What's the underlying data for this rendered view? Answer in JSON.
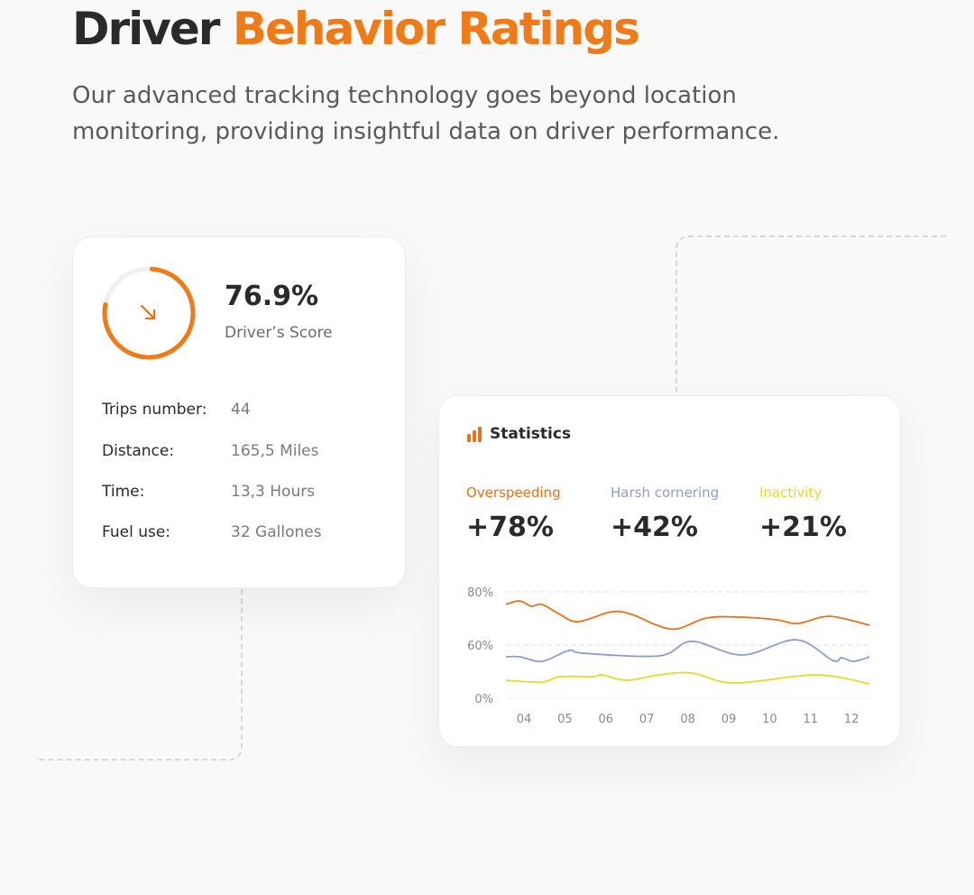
{
  "header": {
    "title_part1": "Driver",
    "title_part2": "Behavior Ratings",
    "subtitle": "Our advanced tracking technology goes beyond location monitoring, providing insightful data on driver performance."
  },
  "score_card": {
    "score": "76.9%",
    "score_fraction": 0.769,
    "score_label": "Driver’s Score",
    "trend_icon": "arrow-down-right-icon",
    "rows": [
      {
        "label": "Trips number:",
        "value": "44"
      },
      {
        "label": "Distance:",
        "value": "165,5 Miles"
      },
      {
        "label": "Time:",
        "value": "13,3 Hours"
      },
      {
        "label": "Fuel use:",
        "value": "32 Gallones"
      }
    ]
  },
  "stats_card": {
    "title": "Statistics",
    "icon": "bar-chart-icon",
    "metrics": [
      {
        "label": "Overspeeding",
        "value": "+78%",
        "color": "#e8711a"
      },
      {
        "label": "Harsh cornering",
        "value": "+42%",
        "color": "#8f9bd0"
      },
      {
        "label": "Inactivity",
        "value": "+21%",
        "color": "#e6d92a"
      }
    ]
  },
  "chart_data": {
    "type": "line",
    "x_ticks": [
      "04",
      "05",
      "06",
      "07",
      "08",
      "09",
      "10",
      "11",
      "12"
    ],
    "y_ticks": [
      "0%",
      "60%",
      "80%"
    ],
    "grid": true,
    "series": [
      {
        "color": "#e8711a",
        "points": [
          [
            3.56,
            75.3
          ],
          [
            3.89,
            76.6
          ],
          [
            4.18,
            74.6
          ],
          [
            4.44,
            75.3
          ],
          [
            4.88,
            71.5
          ],
          [
            5.32,
            68.8
          ],
          [
            6.14,
            72.5
          ],
          [
            6.64,
            71.5
          ],
          [
            7.24,
            67.5
          ],
          [
            7.74,
            66.1
          ],
          [
            8.47,
            70.2
          ],
          [
            9.29,
            70.5
          ],
          [
            10.17,
            69.5
          ],
          [
            10.67,
            68.1
          ],
          [
            11.27,
            70.5
          ],
          [
            11.64,
            70.5
          ],
          [
            12.44,
            67.5
          ]
        ]
      },
      {
        "color": "#8f9bd0",
        "points": [
          [
            3.56,
            46.8
          ],
          [
            3.9,
            46.8
          ],
          [
            4.44,
            41.7
          ],
          [
            5.1,
            53.9
          ],
          [
            5.45,
            50.8
          ],
          [
            7.3,
            47.8
          ],
          [
            8.1,
            61.4
          ],
          [
            9.33,
            48.8
          ],
          [
            10.65,
            62
          ],
          [
            11.54,
            42.7
          ],
          [
            11.76,
            45.8
          ],
          [
            12.05,
            41.7
          ],
          [
            12.44,
            46.8
          ]
        ]
      },
      {
        "color": "#e6d92a",
        "points": [
          [
            3.56,
            20.3
          ],
          [
            4.44,
            18.3
          ],
          [
            4.88,
            24.4
          ],
          [
            5.69,
            24.4
          ],
          [
            5.91,
            26.4
          ],
          [
            6.5,
            20.3
          ],
          [
            7.3,
            26.4
          ],
          [
            8.1,
            28.5
          ],
          [
            9.14,
            17.3
          ],
          [
            11.13,
            26.4
          ],
          [
            12.44,
            16.3
          ]
        ]
      }
    ]
  }
}
